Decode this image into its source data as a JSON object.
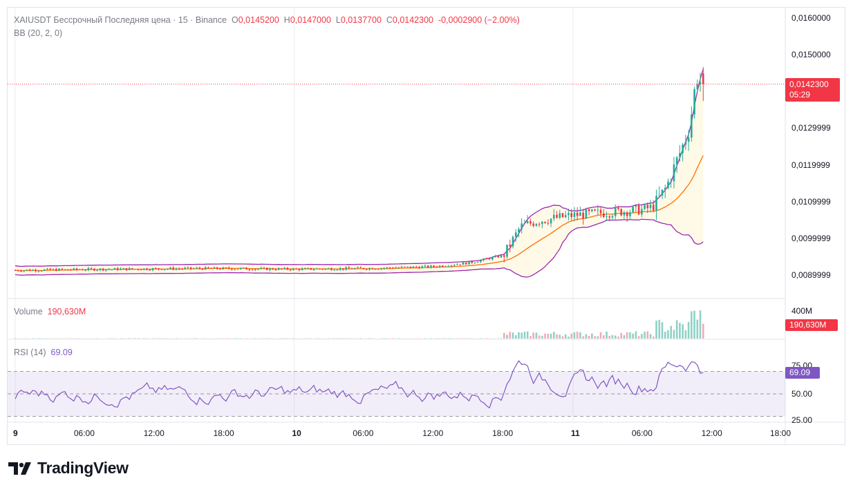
{
  "legend": {
    "symbol": "XAIUSDT Бессрочный Последняя цена · 15 · Binance",
    "open_label": "O",
    "open": "0,0145200",
    "high_label": "H",
    "high": "0,0147000",
    "low_label": "L",
    "low": "0,0137700",
    "close_label": "C",
    "close": "0,0142300",
    "change": "-0,0002900 (−2.00%)",
    "indicator": "BB (20, 2, 0)"
  },
  "volume_legend": {
    "label": "Volume",
    "value": "190,630M"
  },
  "rsi_legend": {
    "label": "RSI (14)",
    "value": "69.09"
  },
  "price_tag": {
    "price": "0,0142300",
    "countdown": "05:29"
  },
  "volume_tag": "190,630M",
  "rsi_tag": "69.09",
  "logo_text": "TradingView",
  "colors": {
    "up": "#22ab94",
    "down": "#f23645",
    "bb_band": "#9c27b0",
    "bb_basis": "#ff6d00",
    "rsi": "#7e57c2"
  },
  "chart_data": {
    "type": "candlestick",
    "price_axis_ticks": [
      "0,0160000",
      "0,0150000",
      "0,0129999",
      "0,0119999",
      "0,0109999",
      "0,0099999",
      "0,0089999"
    ],
    "price_axis_values": [
      0.016,
      0.015,
      0.013,
      0.012,
      0.011,
      0.01,
      0.009
    ],
    "time_axis_ticks": [
      {
        "label": "9",
        "bold": true,
        "hour": 0
      },
      {
        "label": "06:00",
        "bold": false,
        "hour": 6
      },
      {
        "label": "12:00",
        "bold": false,
        "hour": 12
      },
      {
        "label": "18:00",
        "bold": false,
        "hour": 18
      },
      {
        "label": "10",
        "bold": true,
        "hour": 24
      },
      {
        "label": "06:00",
        "bold": false,
        "hour": 30
      },
      {
        "label": "12:00",
        "bold": false,
        "hour": 36
      },
      {
        "label": "18:00",
        "bold": false,
        "hour": 42
      },
      {
        "label": "11",
        "bold": true,
        "hour": 48
      },
      {
        "label": "06:00",
        "bold": false,
        "hour": 54
      },
      {
        "label": "12:00",
        "bold": false,
        "hour": 60
      },
      {
        "label": "18:00",
        "bold": false,
        "hour": 66
      }
    ],
    "volume_axis_ticks": [
      "400M"
    ],
    "rsi_axis_ticks": [
      "75.00",
      "50.00",
      "25.00"
    ],
    "rsi_levels": [
      70,
      50,
      30
    ],
    "price_anchors": [
      [
        0,
        0.00915
      ],
      [
        8,
        0.00918
      ],
      [
        16,
        0.0092
      ],
      [
        24,
        0.00918
      ],
      [
        30,
        0.0092
      ],
      [
        36,
        0.00925
      ],
      [
        39,
        0.00935
      ],
      [
        42,
        0.00955
      ],
      [
        43.5,
        0.01035
      ],
      [
        45,
        0.0105
      ],
      [
        48,
        0.01065
      ],
      [
        52,
        0.01075
      ],
      [
        54,
        0.0108
      ],
      [
        55,
        0.0109
      ],
      [
        56,
        0.0114
      ],
      [
        57,
        0.0122
      ],
      [
        58,
        0.013
      ],
      [
        58.6,
        0.0144
      ],
      [
        59.2,
        0.01423
      ]
    ],
    "last": {
      "open": 0.01452,
      "high": 0.0147,
      "low": 0.01377,
      "close": 0.01423
    },
    "volume_max": 400
  }
}
